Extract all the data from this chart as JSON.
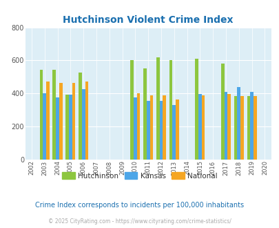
{
  "title": "Hutchinson Violent Crime Index",
  "title_color": "#1a6faf",
  "subtitle": "Crime Index corresponds to incidents per 100,000 inhabitants",
  "copyright": "© 2025 CityRating.com - https://www.cityrating.com/crime-statistics/",
  "years": [
    2003,
    2004,
    2005,
    2006,
    2010,
    2011,
    2012,
    2013,
    2015,
    2017,
    2018,
    2019
  ],
  "hutchinson": [
    543,
    543,
    393,
    527,
    600,
    550,
    618,
    600,
    612,
    582,
    383,
    383
  ],
  "kansas": [
    400,
    378,
    392,
    425,
    375,
    355,
    355,
    330,
    395,
    410,
    437,
    408
  ],
  "national": [
    472,
    462,
    465,
    472,
    403,
    388,
    388,
    365,
    387,
    398,
    383,
    383
  ],
  "hutchinson_color": "#8dc63f",
  "kansas_color": "#4da6e8",
  "national_color": "#f5a623",
  "plot_bg": "#ddeef6",
  "ylim": [
    0,
    800
  ],
  "yticks": [
    0,
    200,
    400,
    600,
    800
  ],
  "xticks_all": [
    2002,
    2003,
    2004,
    2005,
    2006,
    2007,
    2008,
    2009,
    2010,
    2011,
    2012,
    2013,
    2014,
    2015,
    2016,
    2017,
    2018,
    2019,
    2020
  ],
  "bar_width": 0.25,
  "legend_labels": [
    "Hutchinson",
    "Kansas",
    "National"
  ],
  "figsize": [
    4.06,
    3.3
  ],
  "dpi": 100
}
